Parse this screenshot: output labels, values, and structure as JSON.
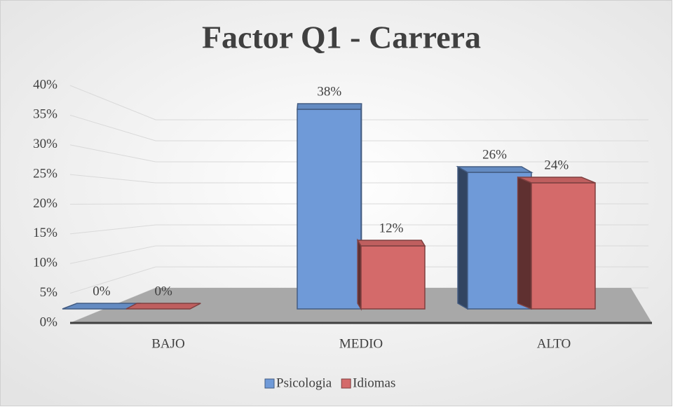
{
  "chart_data": {
    "type": "bar3d",
    "title": "Factor Q1 - Carrera",
    "categories": [
      "BAJO",
      "MEDIO",
      "ALTO"
    ],
    "series": [
      {
        "name": "Psicologia",
        "color": "#6f9ad8",
        "values": [
          0,
          38,
          26
        ],
        "value_labels": [
          "0%",
          "38%",
          "26%"
        ]
      },
      {
        "name": "Idiomas",
        "color": "#d46a6a",
        "values": [
          0,
          12,
          24
        ],
        "value_labels": [
          "0%",
          "12%",
          "24%"
        ]
      }
    ],
    "ylim": [
      0,
      40
    ],
    "yticks": [
      {
        "value": 0,
        "label": "0%"
      },
      {
        "value": 5,
        "label": "5%"
      },
      {
        "value": 10,
        "label": "10%"
      },
      {
        "value": 15,
        "label": "15%"
      },
      {
        "value": 20,
        "label": "20%"
      },
      {
        "value": 25,
        "label": "25%"
      },
      {
        "value": 30,
        "label": "30%"
      },
      {
        "value": 35,
        "label": "35%"
      },
      {
        "value": 40,
        "label": "40%"
      }
    ],
    "grid": true,
    "legend": "bottom"
  }
}
